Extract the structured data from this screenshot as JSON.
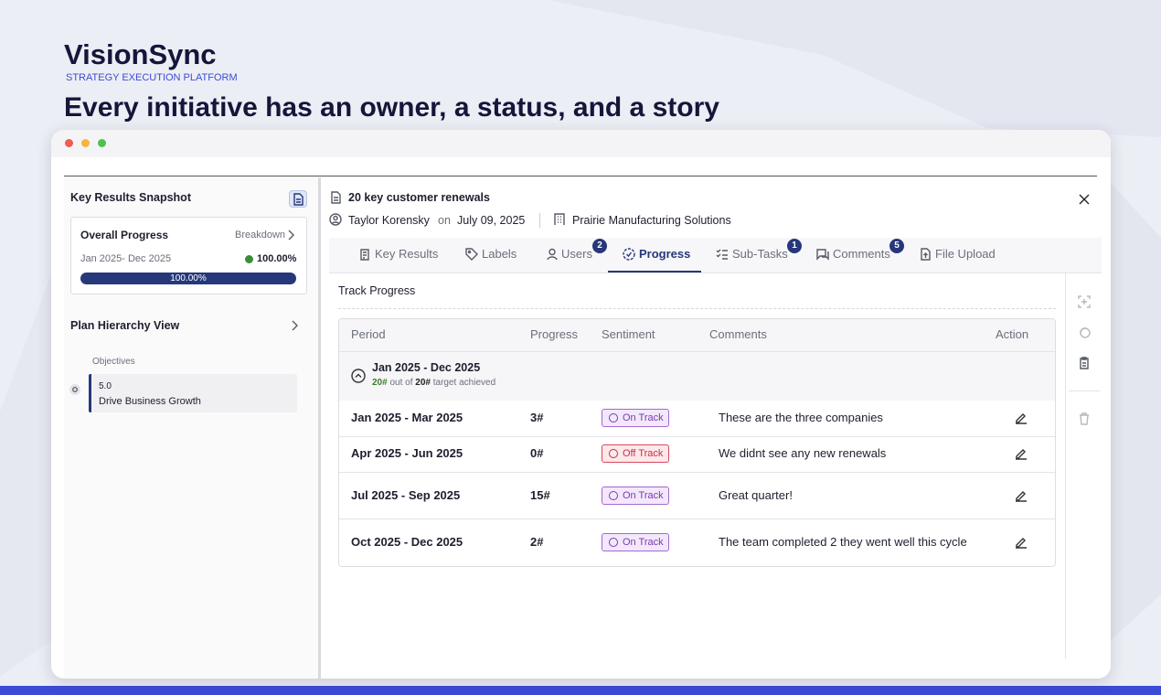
{
  "header": {
    "brand": "VisionSync",
    "tagline": "STRATEGY EXECUTION PLATFORM",
    "headline": "Every initiative has an owner, a status, and a story"
  },
  "sidebar": {
    "title": "Key Results Snapshot",
    "overall": {
      "title": "Overall Progress",
      "breakdown": "Breakdown",
      "period": "Jan 2025- Dec 2025",
      "percent": "100.00%",
      "bar_label": "100.00%"
    },
    "hierarchy": {
      "title": "Plan Hierarchy View",
      "section": "Objectives",
      "item": {
        "number": "5.0",
        "name": "Drive Business Growth"
      }
    }
  },
  "detail": {
    "title": "20 key customer renewals",
    "owner": "Taylor Korensky",
    "on": "on",
    "date": "July 09, 2025",
    "org": "Prairie Manufacturing Solutions",
    "tabs": [
      {
        "label": "Key Results"
      },
      {
        "label": "Labels"
      },
      {
        "label": "Users",
        "badge": 2
      },
      {
        "label": "Progress"
      },
      {
        "label": "Sub-Tasks",
        "badge": 1
      },
      {
        "label": "Comments",
        "badge": 5
      },
      {
        "label": "File Upload"
      }
    ],
    "section": "Track Progress",
    "table": {
      "columns": [
        "Period",
        "Progress",
        "Sentiment",
        "Comments",
        "Action"
      ],
      "group": {
        "period": "Jan 2025 - Dec 2025",
        "achieved": "20#",
        "out_of": "out of",
        "target": "20#",
        "suffix": "target achieved"
      },
      "rows": [
        [
          "Jan 2025 - Mar 2025",
          "3#",
          "On Track",
          "These are the three companies"
        ],
        [
          "Apr 2025 - Jun 2025",
          "0#",
          "Off Track",
          "We didnt see any new renewals"
        ],
        [
          "Jul 2025 - Sep 2025",
          "15#",
          "On Track",
          "Great quarter!"
        ],
        [
          "Oct 2025 - Dec 2025",
          "2#",
          "On Track",
          "The team completed 2 they went well this cycle"
        ]
      ]
    }
  }
}
